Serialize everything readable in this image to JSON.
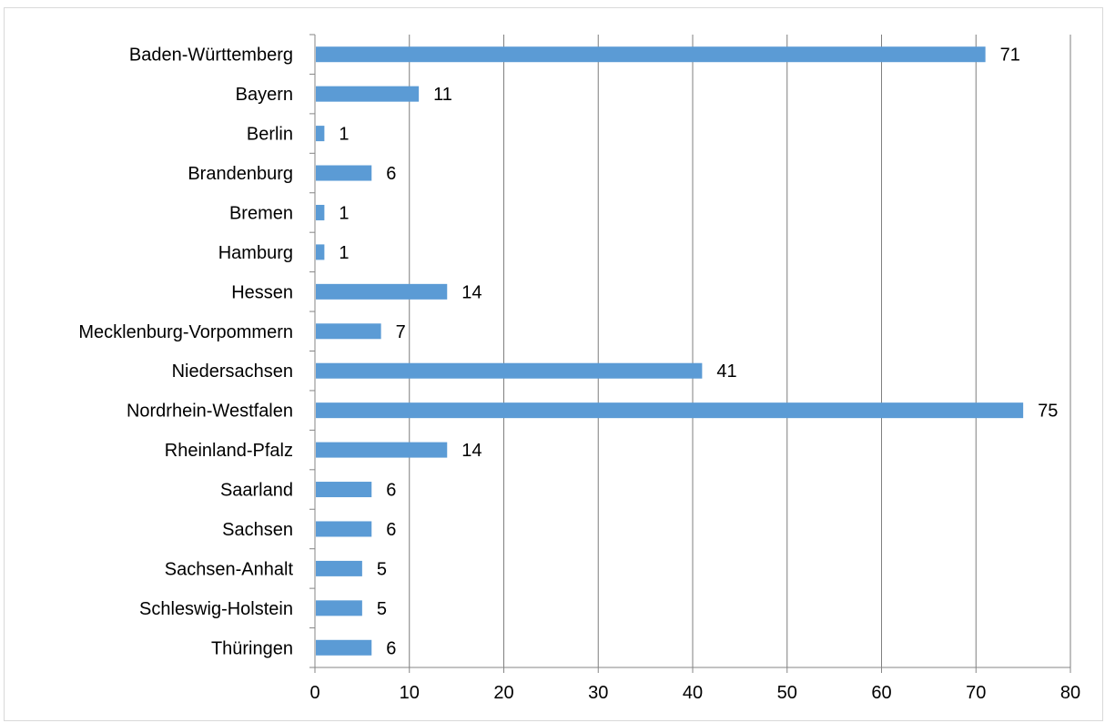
{
  "chart_data": {
    "type": "bar",
    "orientation": "horizontal",
    "title": "",
    "xlabel": "",
    "ylabel": "",
    "categories": [
      "Baden-Württemberg",
      "Bayern",
      "Berlin",
      "Brandenburg",
      "Bremen",
      "Hamburg",
      "Hessen",
      "Mecklenburg-Vorpommern",
      "Niedersachsen",
      "Nordrhein-Westfalen",
      "Rheinland-Pfalz",
      "Saarland",
      "Sachsen",
      "Sachsen-Anhalt",
      "Schleswig-Holstein",
      "Thüringen"
    ],
    "values": [
      71,
      11,
      1,
      6,
      1,
      1,
      14,
      7,
      41,
      75,
      14,
      6,
      6,
      5,
      5,
      6
    ],
    "xlim": [
      0,
      80
    ],
    "x_ticks": [
      0,
      10,
      20,
      30,
      40,
      50,
      60,
      70,
      80
    ],
    "grid": "vertical",
    "legend": "none",
    "data_labels": true,
    "bar_color": "#5b9bd5",
    "gridline_color": "#7f7f7f"
  }
}
